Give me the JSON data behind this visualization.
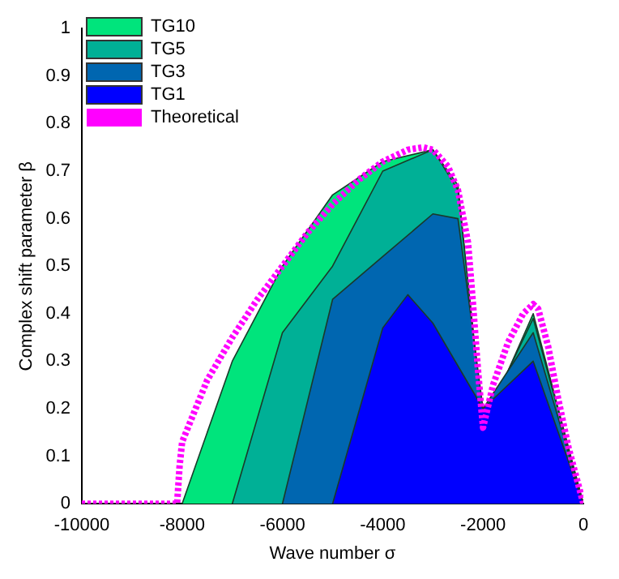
{
  "chart_data": {
    "type": "area",
    "xlabel": "Wave number σ",
    "ylabel": "Complex shift parameter β",
    "xlim": [
      -10000,
      0
    ],
    "xticks": [
      -10000,
      -8000,
      -6000,
      -4000,
      -2000,
      0
    ],
    "ylim": [
      0,
      1
    ],
    "yticks": [
      0,
      0.1,
      0.2,
      0.3,
      0.4,
      0.5,
      0.6,
      0.7,
      0.8,
      0.9,
      1
    ],
    "grid": false,
    "legend": "top left",
    "marker": "none",
    "series": [
      {
        "name": "TG10",
        "color": "#00e47c",
        "x": [
          -8000,
          -7000,
          -6000,
          -5000,
          -4000,
          -3000,
          -2500,
          -2000,
          -1000,
          0
        ],
        "values": [
          0,
          0.3,
          0.5,
          0.65,
          0.72,
          0.745,
          0.67,
          0.16,
          0.4,
          0
        ]
      },
      {
        "name": "TG5",
        "color": "#00b096",
        "x": [
          -7000,
          -6000,
          -5000,
          -4000,
          -3000,
          -2500,
          -2000,
          -1000,
          0
        ],
        "values": [
          0,
          0.36,
          0.5,
          0.7,
          0.745,
          0.66,
          0.17,
          0.39,
          0
        ]
      },
      {
        "name": "TG3",
        "color": "#0066b0",
        "x": [
          -6000,
          -5000,
          -4000,
          -3000,
          -2500,
          -2000,
          -1000,
          0
        ],
        "values": [
          0,
          0.43,
          0.52,
          0.61,
          0.6,
          0.2,
          0.36,
          0
        ]
      },
      {
        "name": "TG1",
        "color": "#0000ff",
        "x": [
          -5000,
          -4000,
          -3500,
          -3000,
          -2000,
          -1000,
          0
        ],
        "values": [
          0,
          0.37,
          0.44,
          0.38,
          0.2,
          0.3,
          0
        ]
      },
      {
        "name": "Theoretical",
        "type": "line",
        "line_style": "dotted",
        "color": "#ff00ff",
        "x": [
          -10000,
          -8100,
          -8050,
          -8000,
          -7500,
          -7000,
          -6500,
          -6000,
          -5500,
          -5000,
          -4500,
          -4000,
          -3500,
          -3200,
          -3000,
          -2700,
          -2500,
          -2300,
          -2200,
          -2100,
          -2000,
          -1800,
          -1500,
          -1200,
          -1000,
          -900,
          -700,
          -500,
          -300,
          -100,
          0
        ],
        "values": [
          0,
          0,
          0.08,
          0.13,
          0.26,
          0.35,
          0.43,
          0.5,
          0.57,
          0.63,
          0.68,
          0.72,
          0.745,
          0.75,
          0.745,
          0.71,
          0.66,
          0.55,
          0.42,
          0.28,
          0.16,
          0.25,
          0.34,
          0.4,
          0.42,
          0.41,
          0.33,
          0.22,
          0.12,
          0.04,
          0
        ]
      }
    ]
  }
}
